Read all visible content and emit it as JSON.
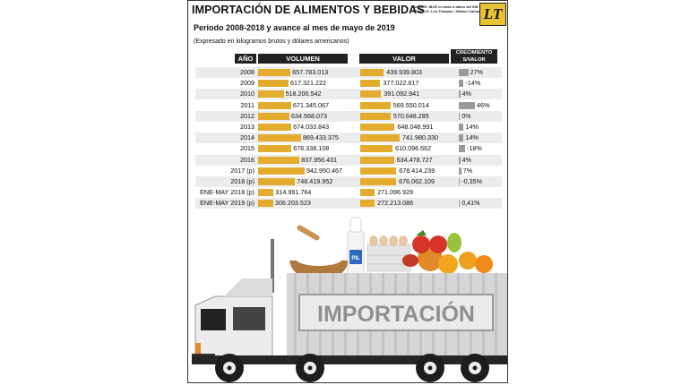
{
  "header": {
    "title": "IMPORTACIÓN DE ALIMENTOS Y BEBIDAS",
    "source_line1": "FUENTE: IBCE en base a datos del INE",
    "source_line2": "GRÁFICO: Los Tiempos / Wilson Cahuaya",
    "logo": "LT",
    "subtitle": "Periodo 2008-2018 y avance al mes de mayo de 2019",
    "note": "(Expresado en kilogramos brutos y dólares americanos)"
  },
  "columns": {
    "year": "AÑO",
    "volume": "VOLUMEN",
    "value": "VALOR",
    "growth_line1": "CRECIMIENTO",
    "growth_line2": "S/VALOR"
  },
  "illustration": {
    "truck_label": "IMPORTACIÓN",
    "milk_label": "PIL"
  },
  "colors": {
    "bar": "#e3ac2e",
    "growth_bar": "#9a9a9a",
    "header_bg": "#222222",
    "row_shade": "#ececec"
  },
  "chart_data": {
    "type": "table",
    "title": "IMPORTACIÓN DE ALIMENTOS Y BEBIDAS",
    "rows": [
      {
        "year": "2008",
        "volume": 657783013,
        "volume_text": "657.783.013",
        "value": 439939803,
        "value_text": "439.939.803",
        "growth": 27,
        "growth_text": "27%"
      },
      {
        "year": "2009",
        "volume": 617321222,
        "volume_text": "617.321.222",
        "value": 377022817,
        "value_text": "377.022.817",
        "growth": -14,
        "growth_text": "-14%"
      },
      {
        "year": "2010",
        "volume": 518200542,
        "volume_text": "518.200.542",
        "value": 391092941,
        "value_text": "391.092.941",
        "growth": 4,
        "growth_text": "4%"
      },
      {
        "year": "2011",
        "volume": 671345067,
        "volume_text": "671.345.067",
        "value": 569550014,
        "value_text": "569.550.014",
        "growth": 46,
        "growth_text": "46%"
      },
      {
        "year": "2012",
        "volume": 634568073,
        "volume_text": "634.568.073",
        "value": 570648285,
        "value_text": "570.648.285",
        "growth": 0,
        "growth_text": "0%"
      },
      {
        "year": "2013",
        "volume": 674033843,
        "volume_text": "674.033.843",
        "value": 648048991,
        "value_text": "648.048.991",
        "growth": 14,
        "growth_text": "14%"
      },
      {
        "year": "2014",
        "volume": 869433375,
        "volume_text": "869.433.375",
        "value": 741980330,
        "value_text": "741.980.330",
        "growth": 14,
        "growth_text": "14%"
      },
      {
        "year": "2015",
        "volume": 676338108,
        "volume_text": "676.338.108",
        "value": 610096662,
        "value_text": "610.096.662",
        "growth": -18,
        "growth_text": "-18%"
      },
      {
        "year": "2016",
        "volume": 837956431,
        "volume_text": "837.956.431",
        "value": 634478727,
        "value_text": "634.478.727",
        "growth": 4,
        "growth_text": "4%"
      },
      {
        "year": "2017 (p)",
        "volume": 942950467,
        "volume_text": "942.950.467",
        "value": 678414239,
        "value_text": "678.414.239",
        "growth": 7,
        "growth_text": "7%"
      },
      {
        "year": "2018 (p)",
        "volume": 748419952,
        "volume_text": "748.419.952",
        "value": 676062109,
        "value_text": "676.062.109",
        "growth": -0.35,
        "growth_text": "-0,35%"
      },
      {
        "year": "ENE-MAY 2018 (p)",
        "volume": 314991764,
        "volume_text": "314.991.764",
        "value": 271096929,
        "value_text": "271.096.929",
        "growth": null,
        "growth_text": ""
      },
      {
        "year": "ENE-MAY 2019 (p)",
        "volume": 306203523,
        "volume_text": "306.203.523",
        "value": 272213086,
        "value_text": "272.213.086",
        "growth": 0.41,
        "growth_text": "0,41%"
      }
    ]
  }
}
